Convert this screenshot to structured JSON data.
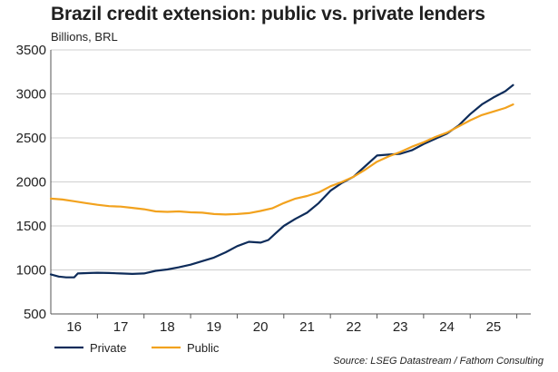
{
  "chart_data": {
    "type": "line",
    "title": "Brazil credit extension: public vs. private lenders",
    "subtitle": "Billions, BRL",
    "xlabel": "",
    "ylabel": "",
    "x_ticks": [
      "16",
      "17",
      "18",
      "19",
      "20",
      "21",
      "22",
      "23",
      "24",
      "25"
    ],
    "x_tick_values": [
      2016,
      2017,
      2018,
      2019,
      2020,
      2021,
      2022,
      2023,
      2024,
      2025
    ],
    "xlim": [
      2015.5,
      2025.8
    ],
    "y_ticks": [
      500,
      1000,
      1500,
      2000,
      2500,
      3000,
      3500
    ],
    "ylim": [
      500,
      3500
    ],
    "grid": "horizontal",
    "legend_position": "bottom-left",
    "series": [
      {
        "name": "Private",
        "color": "#0e2c5a",
        "points": [
          [
            2015.5,
            950
          ],
          [
            2015.67,
            925
          ],
          [
            2015.83,
            915
          ],
          [
            2016.0,
            915
          ],
          [
            2016.08,
            960
          ],
          [
            2016.33,
            965
          ],
          [
            2016.5,
            968
          ],
          [
            2016.75,
            965
          ],
          [
            2017.0,
            960
          ],
          [
            2017.25,
            955
          ],
          [
            2017.5,
            960
          ],
          [
            2017.75,
            990
          ],
          [
            2018.0,
            1005
          ],
          [
            2018.25,
            1030
          ],
          [
            2018.5,
            1060
          ],
          [
            2018.75,
            1100
          ],
          [
            2019.0,
            1140
          ],
          [
            2019.25,
            1200
          ],
          [
            2019.5,
            1270
          ],
          [
            2019.75,
            1320
          ],
          [
            2020.0,
            1310
          ],
          [
            2020.17,
            1340
          ],
          [
            2020.33,
            1420
          ],
          [
            2020.5,
            1500
          ],
          [
            2020.75,
            1580
          ],
          [
            2021.0,
            1650
          ],
          [
            2021.25,
            1760
          ],
          [
            2021.5,
            1900
          ],
          [
            2021.75,
            1990
          ],
          [
            2022.0,
            2060
          ],
          [
            2022.25,
            2180
          ],
          [
            2022.5,
            2300
          ],
          [
            2022.75,
            2310
          ],
          [
            2023.0,
            2320
          ],
          [
            2023.25,
            2360
          ],
          [
            2023.5,
            2430
          ],
          [
            2023.75,
            2490
          ],
          [
            2024.0,
            2550
          ],
          [
            2024.25,
            2640
          ],
          [
            2024.5,
            2770
          ],
          [
            2024.75,
            2880
          ],
          [
            2025.0,
            2960
          ],
          [
            2025.25,
            3030
          ],
          [
            2025.42,
            3100
          ]
        ]
      },
      {
        "name": "Public",
        "color": "#f2a21e",
        "points": [
          [
            2015.5,
            1810
          ],
          [
            2015.75,
            1800
          ],
          [
            2016.0,
            1780
          ],
          [
            2016.25,
            1760
          ],
          [
            2016.5,
            1740
          ],
          [
            2016.75,
            1725
          ],
          [
            2017.0,
            1720
          ],
          [
            2017.25,
            1705
          ],
          [
            2017.5,
            1690
          ],
          [
            2017.75,
            1665
          ],
          [
            2018.0,
            1660
          ],
          [
            2018.25,
            1665
          ],
          [
            2018.5,
            1655
          ],
          [
            2018.75,
            1650
          ],
          [
            2019.0,
            1635
          ],
          [
            2019.25,
            1630
          ],
          [
            2019.5,
            1635
          ],
          [
            2019.75,
            1645
          ],
          [
            2020.0,
            1670
          ],
          [
            2020.25,
            1700
          ],
          [
            2020.5,
            1760
          ],
          [
            2020.75,
            1810
          ],
          [
            2021.0,
            1840
          ],
          [
            2021.25,
            1880
          ],
          [
            2021.5,
            1950
          ],
          [
            2021.75,
            2000
          ],
          [
            2022.0,
            2060
          ],
          [
            2022.25,
            2140
          ],
          [
            2022.5,
            2230
          ],
          [
            2022.75,
            2290
          ],
          [
            2023.0,
            2340
          ],
          [
            2023.25,
            2400
          ],
          [
            2023.5,
            2450
          ],
          [
            2023.75,
            2510
          ],
          [
            2024.0,
            2560
          ],
          [
            2024.25,
            2630
          ],
          [
            2024.5,
            2700
          ],
          [
            2024.75,
            2760
          ],
          [
            2025.0,
            2800
          ],
          [
            2025.25,
            2840
          ],
          [
            2025.42,
            2880
          ]
        ]
      }
    ],
    "source": "Source: LSEG Datastream / Fathom Consulting"
  }
}
